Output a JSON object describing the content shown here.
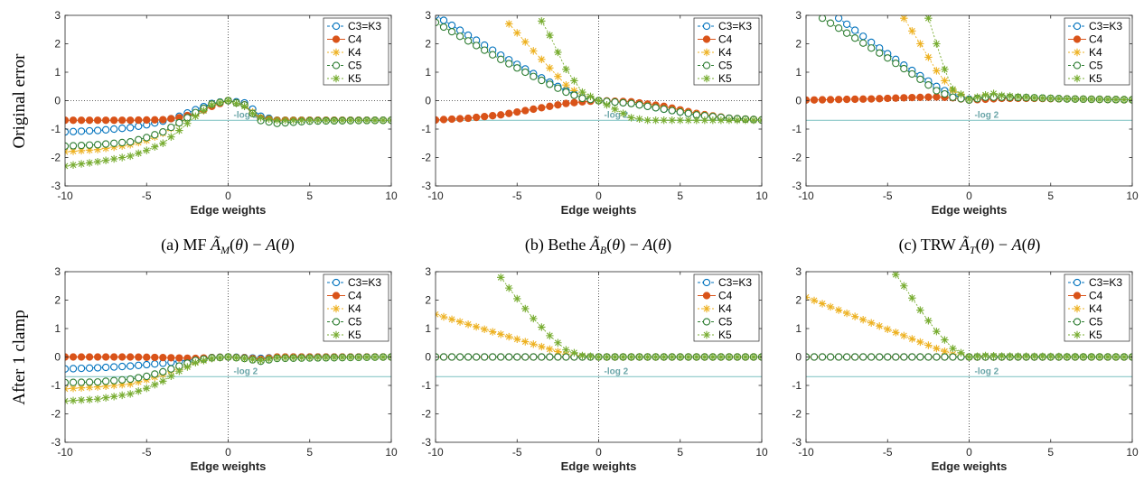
{
  "row_labels": [
    "Original error",
    "After 1 clamp"
  ],
  "captions": [
    "(a) MF Ã_M(θ) − A(θ)",
    "(b) Bethe Ã_B(θ) − A(θ)",
    "(c) TRW Ã_T(θ) − A(θ)"
  ],
  "reference_line": {
    "label": "-log 2",
    "value": -0.693
  },
  "colors": {
    "C3=K3": "#0072bd",
    "C4": "#d95319",
    "K4": "#edb120",
    "C5": "#2e7d32",
    "K5": "#77ac30",
    "reference": "#8cc8c8"
  },
  "markers": {
    "C3=K3": "circle",
    "C4": "filled-circle",
    "K4": "star",
    "C5": "circle",
    "K5": "star"
  },
  "chart_data": [
    {
      "id": "mf-original",
      "type": "line",
      "xlabel": "Edge weights",
      "xlim": [
        -10,
        10
      ],
      "ylim": [
        -3,
        3
      ],
      "xticks": [
        -10,
        -5,
        0,
        5,
        10
      ],
      "yticks": [
        -3,
        -2,
        -1,
        0,
        1,
        2,
        3
      ],
      "legend": [
        "C3=K3",
        "C4",
        "K4",
        "C5",
        "K5"
      ],
      "legend_position": "top-right",
      "series": [
        {
          "name": "C3=K3",
          "x": [
            -10,
            -8,
            -6,
            -5,
            -4,
            -3,
            -2,
            -1,
            0,
            1,
            1.5,
            2,
            3,
            5,
            10
          ],
          "y": [
            -1.1,
            -1.05,
            -0.95,
            -0.85,
            -0.72,
            -0.55,
            -0.32,
            -0.1,
            0,
            -0.08,
            -0.3,
            -0.55,
            -0.69,
            -0.69,
            -0.69
          ]
        },
        {
          "name": "C4",
          "x": [
            -10,
            -8,
            -6,
            -4,
            -3,
            -2,
            -1,
            0,
            1,
            1.5,
            2,
            3,
            5,
            10
          ],
          "y": [
            -0.69,
            -0.69,
            -0.69,
            -0.67,
            -0.6,
            -0.45,
            -0.2,
            0,
            -0.15,
            -0.45,
            -0.62,
            -0.69,
            -0.69,
            -0.69
          ]
        },
        {
          "name": "K4",
          "x": [
            -10,
            -8,
            -6,
            -5,
            -4,
            -3,
            -2,
            -1,
            0,
            1,
            1.5,
            2,
            3,
            5,
            10
          ],
          "y": [
            -1.8,
            -1.72,
            -1.55,
            -1.4,
            -1.15,
            -0.8,
            -0.45,
            -0.12,
            0,
            -0.15,
            -0.4,
            -0.6,
            -0.69,
            -0.69,
            -0.69
          ]
        },
        {
          "name": "C5",
          "x": [
            -10,
            -8,
            -6,
            -5,
            -4,
            -3,
            -2,
            -1,
            0,
            1,
            1.5,
            2,
            3,
            5,
            10
          ],
          "y": [
            -1.6,
            -1.55,
            -1.45,
            -1.3,
            -1.1,
            -0.78,
            -0.42,
            -0.12,
            0,
            -0.15,
            -0.45,
            -0.7,
            -0.8,
            -0.72,
            -0.69
          ]
        },
        {
          "name": "K5",
          "x": [
            -10,
            -8,
            -6,
            -5,
            -4,
            -3,
            -2,
            -1,
            0,
            1,
            1.5,
            2,
            3,
            5,
            10
          ],
          "y": [
            -2.3,
            -2.15,
            -1.95,
            -1.75,
            -1.5,
            -1.05,
            -0.55,
            -0.15,
            0,
            -0.2,
            -0.45,
            -0.6,
            -0.69,
            -0.69,
            -0.69
          ]
        }
      ]
    },
    {
      "id": "bethe-original",
      "type": "line",
      "xlabel": "Edge weights",
      "xlim": [
        -10,
        10
      ],
      "ylim": [
        -3,
        3
      ],
      "xticks": [
        -10,
        -5,
        0,
        5,
        10
      ],
      "yticks": [
        -3,
        -2,
        -1,
        0,
        1,
        2,
        3
      ],
      "legend": [
        "C3=K3",
        "C4",
        "K4",
        "C5",
        "K5"
      ],
      "legend_position": "top-right",
      "series": [
        {
          "name": "C3=K3",
          "x": [
            -10,
            -8,
            -6,
            -4,
            -2,
            -1,
            0,
            2,
            4,
            6,
            8,
            10
          ],
          "y": [
            3,
            2.3,
            1.6,
            0.95,
            0.35,
            0.1,
            0,
            -0.1,
            -0.3,
            -0.5,
            -0.62,
            -0.68
          ]
        },
        {
          "name": "C4",
          "x": [
            -10,
            -8,
            -6,
            -4,
            -2,
            -1,
            0,
            2,
            4,
            6,
            8,
            10
          ],
          "y": [
            -0.68,
            -0.62,
            -0.5,
            -0.3,
            -0.1,
            -0.04,
            0,
            -0.04,
            -0.2,
            -0.45,
            -0.62,
            -0.68
          ]
        },
        {
          "name": "K4",
          "x": [
            -5.5,
            -4,
            -3,
            -2,
            -1,
            0,
            2,
            4,
            6,
            8,
            10
          ],
          "y": [
            2.7,
            1.75,
            1.15,
            0.55,
            0.15,
            0,
            -0.1,
            -0.28,
            -0.48,
            -0.62,
            -0.68
          ]
        },
        {
          "name": "C5",
          "x": [
            -10,
            -8,
            -6,
            -4,
            -2,
            -1,
            0,
            2,
            4,
            6,
            8,
            10
          ],
          "y": [
            2.75,
            2.1,
            1.45,
            0.85,
            0.3,
            0.08,
            0,
            -0.1,
            -0.3,
            -0.5,
            -0.62,
            -0.68
          ]
        },
        {
          "name": "K5",
          "x": [
            -3.5,
            -3,
            -2,
            -1,
            0,
            1,
            2,
            3,
            5,
            10
          ],
          "y": [
            2.8,
            2.3,
            1.1,
            0.3,
            0,
            -0.3,
            -0.6,
            -0.69,
            -0.69,
            -0.69
          ]
        }
      ]
    },
    {
      "id": "trw-original",
      "type": "line",
      "xlabel": "Edge weights",
      "xlim": [
        -10,
        10
      ],
      "ylim": [
        -3,
        3
      ],
      "xticks": [
        -10,
        -5,
        0,
        5,
        10
      ],
      "yticks": [
        -3,
        -2,
        -1,
        0,
        1,
        2,
        3
      ],
      "legend": [
        "C3=K3",
        "C4",
        "K4",
        "C5",
        "K5"
      ],
      "legend_position": "top-right",
      "series": [
        {
          "name": "C3=K3",
          "x": [
            -8,
            -6,
            -4,
            -2,
            -1,
            0,
            1,
            2,
            4,
            6,
            10
          ],
          "y": [
            2.9,
            2.05,
            1.25,
            0.5,
            0.2,
            0.05,
            0.1,
            0.12,
            0.1,
            0.06,
            0.03
          ]
        },
        {
          "name": "C4",
          "x": [
            -10,
            -8,
            -6,
            -4,
            -2,
            -1,
            0,
            1,
            2,
            4,
            6,
            10
          ],
          "y": [
            0.02,
            0.04,
            0.06,
            0.1,
            0.13,
            0.1,
            0.02,
            0.05,
            0.08,
            0.08,
            0.06,
            0.03
          ]
        },
        {
          "name": "K4",
          "x": [
            -4,
            -3,
            -2,
            -1,
            0,
            1,
            2,
            4,
            6,
            10
          ],
          "y": [
            2.9,
            2.0,
            1.05,
            0.35,
            0.05,
            0.15,
            0.12,
            0.1,
            0.06,
            0.03
          ]
        },
        {
          "name": "C5",
          "x": [
            -9,
            -7,
            -5,
            -3,
            -2,
            -1,
            0,
            1,
            2,
            4,
            6,
            10
          ],
          "y": [
            2.9,
            2.2,
            1.5,
            0.75,
            0.35,
            0.12,
            0.02,
            0.12,
            0.12,
            0.1,
            0.06,
            0.03
          ]
        },
        {
          "name": "K5",
          "x": [
            -2.5,
            -2,
            -1.5,
            -1,
            0,
            1,
            1.5,
            2,
            4,
            6,
            10
          ],
          "y": [
            2.9,
            2.0,
            1.1,
            0.4,
            0.05,
            0.2,
            0.25,
            0.18,
            0.1,
            0.06,
            0.03
          ]
        }
      ]
    },
    {
      "id": "mf-clamp",
      "type": "line",
      "xlabel": "Edge weights",
      "xlim": [
        -10,
        10
      ],
      "ylim": [
        -3,
        3
      ],
      "xticks": [
        -10,
        -5,
        0,
        5,
        10
      ],
      "yticks": [
        -3,
        -2,
        -1,
        0,
        1,
        2,
        3
      ],
      "legend": [
        "C3=K3",
        "C4",
        "K4",
        "C5",
        "K5"
      ],
      "legend_position": "top-right",
      "series": [
        {
          "name": "C3=K3",
          "x": [
            -10,
            -8,
            -6,
            -4,
            -2,
            -1,
            0,
            1,
            2,
            3,
            4,
            10
          ],
          "y": [
            -0.42,
            -0.38,
            -0.32,
            -0.22,
            -0.08,
            -0.02,
            0,
            -0.02,
            -0.05,
            -0.01,
            0,
            0
          ]
        },
        {
          "name": "C4",
          "x": [
            -10,
            -6,
            -4,
            -2,
            -1,
            0,
            1,
            2,
            3,
            10
          ],
          "y": [
            0,
            0,
            -0.02,
            -0.05,
            -0.02,
            0,
            -0.03,
            -0.08,
            0,
            0
          ]
        },
        {
          "name": "K4",
          "x": [
            -10,
            -8,
            -6,
            -5,
            -4,
            -3,
            -2,
            -1,
            0,
            1,
            2,
            3,
            10
          ],
          "y": [
            -1.12,
            -1.05,
            -0.95,
            -0.8,
            -0.62,
            -0.38,
            -0.18,
            -0.05,
            0,
            -0.05,
            -0.1,
            -0.02,
            0
          ]
        },
        {
          "name": "C5",
          "x": [
            -10,
            -8,
            -6,
            -5,
            -4,
            -3,
            -2,
            -1,
            0,
            1,
            2,
            3,
            10
          ],
          "y": [
            -0.9,
            -0.88,
            -0.78,
            -0.68,
            -0.52,
            -0.32,
            -0.12,
            -0.03,
            0,
            -0.05,
            -0.15,
            -0.05,
            0
          ]
        },
        {
          "name": "K5",
          "x": [
            -10,
            -8,
            -6,
            -5,
            -4,
            -3,
            -2,
            -1,
            0,
            1,
            2,
            3,
            10
          ],
          "y": [
            -1.55,
            -1.48,
            -1.3,
            -1.1,
            -0.85,
            -0.5,
            -0.2,
            -0.05,
            0,
            -0.05,
            -0.12,
            -0.03,
            0
          ]
        }
      ]
    },
    {
      "id": "bethe-clamp",
      "type": "line",
      "xlabel": "Edge weights",
      "xlim": [
        -10,
        10
      ],
      "ylim": [
        -3,
        3
      ],
      "xticks": [
        -10,
        -5,
        0,
        5,
        10
      ],
      "yticks": [
        -3,
        -2,
        -1,
        0,
        1,
        2,
        3
      ],
      "legend": [
        "C3=K3",
        "C4",
        "K4",
        "C5",
        "K5"
      ],
      "legend_position": "top-right",
      "series": [
        {
          "name": "C3=K3",
          "x": [
            -10,
            10
          ],
          "y": [
            0,
            0
          ]
        },
        {
          "name": "C4",
          "x": [
            -10,
            10
          ],
          "y": [
            0,
            0
          ]
        },
        {
          "name": "K4",
          "x": [
            -10,
            -8,
            -6,
            -4,
            -2,
            -1,
            0,
            10
          ],
          "y": [
            1.5,
            1.15,
            0.8,
            0.45,
            0.1,
            0.02,
            0,
            0
          ]
        },
        {
          "name": "C5",
          "x": [
            -10,
            10
          ],
          "y": [
            0,
            0
          ]
        },
        {
          "name": "K5",
          "x": [
            -6,
            -5,
            -4,
            -3,
            -2,
            -1,
            0,
            10
          ],
          "y": [
            2.8,
            2.05,
            1.35,
            0.75,
            0.25,
            0.05,
            0,
            0
          ]
        }
      ]
    },
    {
      "id": "trw-clamp",
      "type": "line",
      "xlabel": "Edge weights",
      "xlim": [
        -10,
        10
      ],
      "ylim": [
        -3,
        3
      ],
      "xticks": [
        -10,
        -5,
        0,
        5,
        10
      ],
      "yticks": [
        -3,
        -2,
        -1,
        0,
        1,
        2,
        3
      ],
      "legend": [
        "C3=K3",
        "C4",
        "K4",
        "C5",
        "K5"
      ],
      "legend_position": "top-right",
      "series": [
        {
          "name": "C3=K3",
          "x": [
            -10,
            10
          ],
          "y": [
            0,
            0
          ]
        },
        {
          "name": "C4",
          "x": [
            -10,
            10
          ],
          "y": [
            0,
            0
          ]
        },
        {
          "name": "K4",
          "x": [
            -10,
            -8,
            -6,
            -4,
            -2,
            -1,
            0,
            10
          ],
          "y": [
            2.1,
            1.65,
            1.2,
            0.75,
            0.3,
            0.1,
            0,
            0
          ]
        },
        {
          "name": "C5",
          "x": [
            -10,
            10
          ],
          "y": [
            0,
            0
          ]
        },
        {
          "name": "K5",
          "x": [
            -4.5,
            -4,
            -3,
            -2,
            -1,
            0,
            1,
            2,
            10
          ],
          "y": [
            2.9,
            2.5,
            1.65,
            0.9,
            0.3,
            0,
            0.05,
            0.03,
            0
          ]
        }
      ]
    }
  ]
}
